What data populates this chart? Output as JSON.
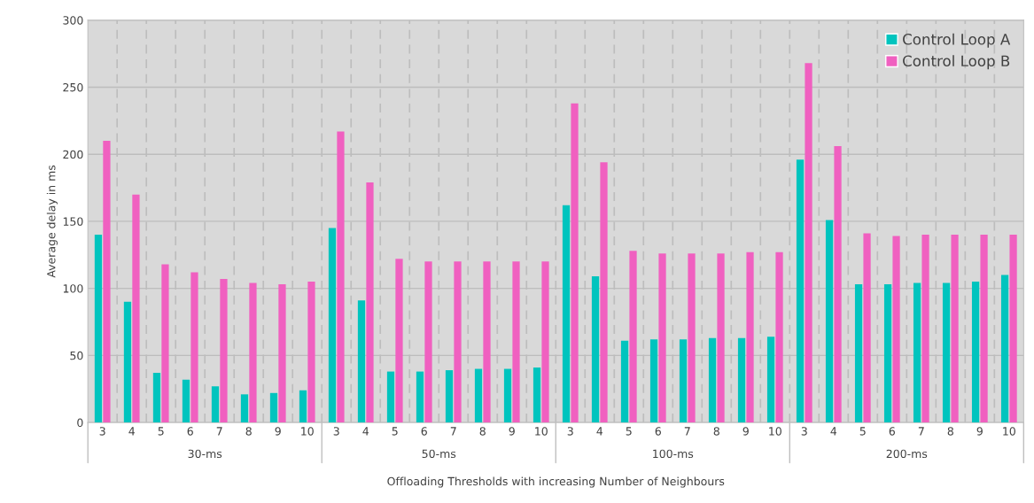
{
  "chart_data": {
    "type": "bar",
    "xlabel": "Offloading Thresholds with increasing Number of Neighbours",
    "ylabel": "Average delay in ms",
    "categories": [
      "3",
      "4",
      "5",
      "6",
      "7",
      "8",
      "9",
      "10",
      "3",
      "4",
      "5",
      "6",
      "7",
      "8",
      "9",
      "10",
      "3",
      "4",
      "5",
      "6",
      "7",
      "8",
      "9",
      "10",
      "3",
      "4",
      "5",
      "6",
      "7",
      "8",
      "9",
      "10"
    ],
    "annotations": [
      "30-ms",
      "50-ms",
      "100-ms",
      "200-ms"
    ],
    "series": [
      {
        "name": "Control Loop A",
        "color": "#00c4be",
        "values": [
          140,
          90,
          37,
          32,
          27,
          21,
          22,
          24,
          145,
          91,
          38,
          38,
          39,
          40,
          40,
          41,
          162,
          109,
          61,
          62,
          62,
          63,
          63,
          64,
          196,
          151,
          103,
          103,
          104,
          104,
          105,
          110
        ]
      },
      {
        "name": "Control Loop B",
        "color": "#f060c0",
        "values": [
          210,
          170,
          118,
          112,
          107,
          104,
          103,
          105,
          217,
          179,
          122,
          120,
          120,
          120,
          120,
          120,
          238,
          194,
          128,
          126,
          126,
          126,
          127,
          127,
          268,
          206,
          141,
          139,
          140,
          140,
          140,
          140
        ]
      }
    ],
    "ylim": [
      0,
      300
    ],
    "yticks": [
      0,
      50,
      100,
      150,
      200,
      250,
      300
    ],
    "grid": true,
    "legend": "top right"
  }
}
